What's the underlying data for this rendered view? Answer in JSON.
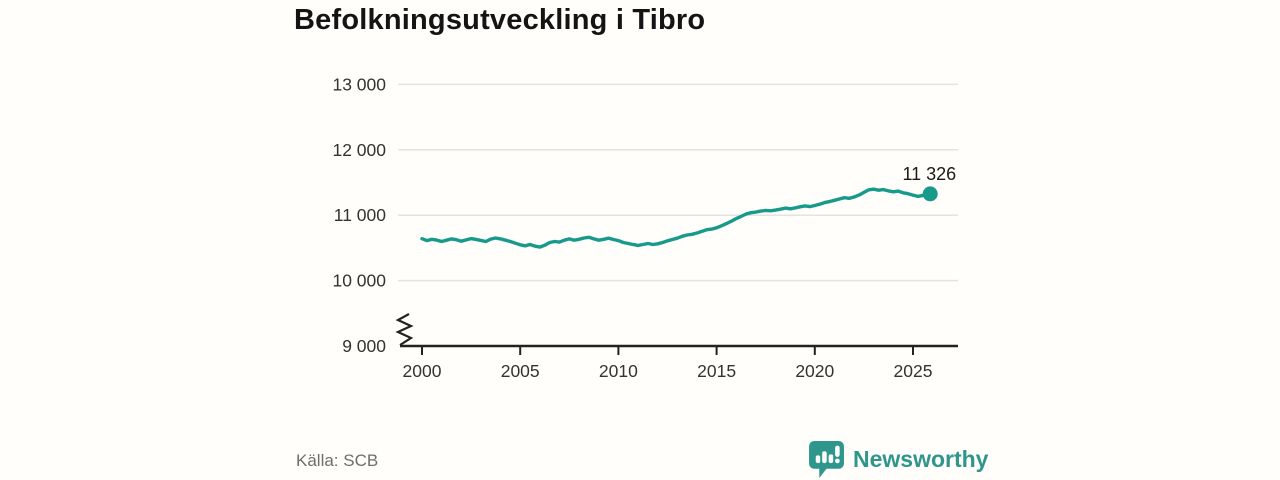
{
  "title": "Befolkningsutveckling i Tibro",
  "footer": {
    "source": "Källa: SCB",
    "brand": "Newsworthy"
  },
  "colors": {
    "line": "#189a8b",
    "logo": "#2e968b",
    "grid": "#e3e3e3",
    "axis": "#222222",
    "tick_text": "#333333",
    "end_label_text": "#1a1a1a",
    "background": "#fffefa"
  },
  "chart_data": {
    "type": "line",
    "title": "Befolkningsutveckling i Tibro",
    "xlabel": "",
    "ylabel": "",
    "ylim": [
      9000,
      13000
    ],
    "xlim": [
      1999.5,
      2027.5
    ],
    "grid": "horizontal",
    "legend": "none",
    "axis_break_at_y_bottom": true,
    "y_ticks": [
      {
        "value": 13000,
        "label": "13 000"
      },
      {
        "value": 12000,
        "label": "12 000"
      },
      {
        "value": 11000,
        "label": "11 000"
      },
      {
        "value": 10000,
        "label": "10 000"
      },
      {
        "value": 9000,
        "label": "9 000"
      }
    ],
    "x_ticks": [
      {
        "value": 2000,
        "label": "2000"
      },
      {
        "value": 2005,
        "label": "2005"
      },
      {
        "value": 2010,
        "label": "2010"
      },
      {
        "value": 2015,
        "label": "2015"
      },
      {
        "value": 2020,
        "label": "2020"
      },
      {
        "value": 2025,
        "label": "2025"
      }
    ],
    "end_label": "11 326",
    "end_value": 11326,
    "series": [
      {
        "name": "Befolkning",
        "color": "#189a8b",
        "points": [
          [
            2000.0,
            10640
          ],
          [
            2000.25,
            10612
          ],
          [
            2000.5,
            10632
          ],
          [
            2000.75,
            10620
          ],
          [
            2001.0,
            10598
          ],
          [
            2001.25,
            10618
          ],
          [
            2001.5,
            10638
          ],
          [
            2001.75,
            10625
          ],
          [
            2002.0,
            10602
          ],
          [
            2002.25,
            10622
          ],
          [
            2002.5,
            10642
          ],
          [
            2002.75,
            10630
          ],
          [
            2003.0,
            10615
          ],
          [
            2003.25,
            10598
          ],
          [
            2003.5,
            10635
          ],
          [
            2003.75,
            10652
          ],
          [
            2004.0,
            10638
          ],
          [
            2004.25,
            10618
          ],
          [
            2004.5,
            10598
          ],
          [
            2004.75,
            10572
          ],
          [
            2005.0,
            10548
          ],
          [
            2005.25,
            10532
          ],
          [
            2005.5,
            10552
          ],
          [
            2005.75,
            10528
          ],
          [
            2006.0,
            10512
          ],
          [
            2006.25,
            10542
          ],
          [
            2006.5,
            10582
          ],
          [
            2006.75,
            10598
          ],
          [
            2007.0,
            10588
          ],
          [
            2007.25,
            10618
          ],
          [
            2007.5,
            10638
          ],
          [
            2007.75,
            10618
          ],
          [
            2008.0,
            10632
          ],
          [
            2008.25,
            10652
          ],
          [
            2008.5,
            10662
          ],
          [
            2008.75,
            10638
          ],
          [
            2009.0,
            10618
          ],
          [
            2009.25,
            10632
          ],
          [
            2009.5,
            10648
          ],
          [
            2009.75,
            10628
          ],
          [
            2010.0,
            10612
          ],
          [
            2010.25,
            10582
          ],
          [
            2010.5,
            10568
          ],
          [
            2010.75,
            10552
          ],
          [
            2011.0,
            10538
          ],
          [
            2011.25,
            10552
          ],
          [
            2011.5,
            10568
          ],
          [
            2011.75,
            10552
          ],
          [
            2012.0,
            10562
          ],
          [
            2012.25,
            10582
          ],
          [
            2012.5,
            10608
          ],
          [
            2012.75,
            10628
          ],
          [
            2013.0,
            10648
          ],
          [
            2013.25,
            10678
          ],
          [
            2013.5,
            10698
          ],
          [
            2013.75,
            10708
          ],
          [
            2014.0,
            10728
          ],
          [
            2014.25,
            10752
          ],
          [
            2014.5,
            10778
          ],
          [
            2014.75,
            10788
          ],
          [
            2015.0,
            10808
          ],
          [
            2015.25,
            10838
          ],
          [
            2015.5,
            10872
          ],
          [
            2015.75,
            10908
          ],
          [
            2016.0,
            10948
          ],
          [
            2016.25,
            10982
          ],
          [
            2016.5,
            11018
          ],
          [
            2016.75,
            11038
          ],
          [
            2017.0,
            11048
          ],
          [
            2017.25,
            11062
          ],
          [
            2017.5,
            11074
          ],
          [
            2017.75,
            11068
          ],
          [
            2018.0,
            11078
          ],
          [
            2018.25,
            11092
          ],
          [
            2018.5,
            11108
          ],
          [
            2018.75,
            11098
          ],
          [
            2019.0,
            11112
          ],
          [
            2019.25,
            11128
          ],
          [
            2019.5,
            11142
          ],
          [
            2019.75,
            11132
          ],
          [
            2020.0,
            11148
          ],
          [
            2020.25,
            11168
          ],
          [
            2020.5,
            11192
          ],
          [
            2020.75,
            11208
          ],
          [
            2021.0,
            11228
          ],
          [
            2021.25,
            11248
          ],
          [
            2021.5,
            11268
          ],
          [
            2021.75,
            11258
          ],
          [
            2022.0,
            11278
          ],
          [
            2022.25,
            11308
          ],
          [
            2022.5,
            11348
          ],
          [
            2022.75,
            11388
          ],
          [
            2023.0,
            11398
          ],
          [
            2023.25,
            11382
          ],
          [
            2023.5,
            11392
          ],
          [
            2023.75,
            11372
          ],
          [
            2024.0,
            11358
          ],
          [
            2024.25,
            11368
          ],
          [
            2024.5,
            11342
          ],
          [
            2024.75,
            11328
          ],
          [
            2025.0,
            11308
          ],
          [
            2025.25,
            11288
          ],
          [
            2025.5,
            11302
          ],
          [
            2025.875,
            11326
          ]
        ]
      }
    ]
  }
}
